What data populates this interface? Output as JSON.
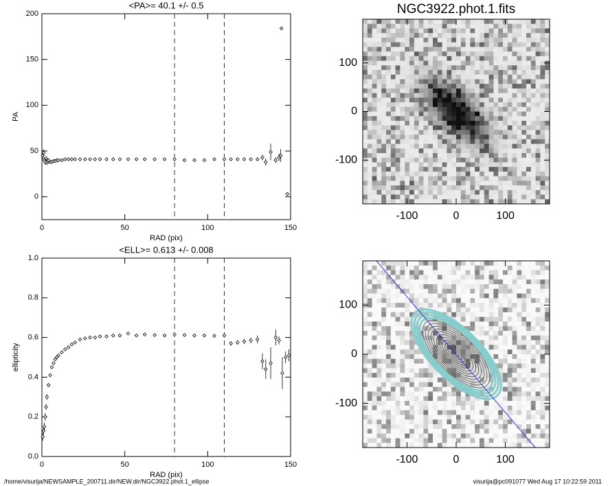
{
  "chart_data": [
    {
      "type": "scatter",
      "title": "<PA>=  40.1 +/-   0.5",
      "x_label": "RAD (pix)",
      "y_label": "PA",
      "x": [
        0.5,
        1,
        1.5,
        2,
        2.5,
        3,
        3.5,
        4,
        5,
        6,
        7,
        8,
        9,
        10,
        12,
        14,
        16,
        18,
        20,
        23,
        26,
        29,
        32,
        35,
        39,
        43,
        47,
        52,
        57,
        62,
        68,
        74,
        80,
        86,
        92,
        98,
        104,
        110,
        114,
        118,
        122,
        126,
        130,
        133,
        135,
        138,
        141,
        143,
        144,
        144.5,
        148
      ],
      "values": [
        45,
        48,
        40,
        38,
        42,
        37,
        39,
        40,
        38,
        38,
        39,
        39,
        40,
        40,
        40,
        41,
        41,
        41,
        41,
        41,
        41,
        41,
        41,
        41,
        41,
        41,
        41,
        41,
        41,
        41,
        41,
        41,
        41,
        40,
        40,
        40,
        41,
        41,
        41,
        41,
        41,
        41,
        41,
        43,
        38,
        49,
        40,
        43,
        45,
        184,
        3
      ],
      "errors": [
        4,
        4,
        3,
        3,
        2,
        2,
        2,
        1.5,
        1,
        1,
        1,
        0.8,
        0.8,
        0.6,
        0.6,
        0.5,
        0.5,
        0.5,
        0.5,
        0.5,
        0.5,
        0.5,
        0.5,
        0.5,
        0.5,
        0.5,
        0.5,
        0.5,
        0.5,
        0.5,
        0.5,
        0.5,
        0.5,
        0.6,
        0.6,
        0.6,
        0.7,
        0.8,
        0.9,
        1,
        1,
        1.5,
        2,
        3,
        4,
        9,
        3,
        4,
        7,
        1,
        1
      ],
      "vlines": [
        80,
        110
      ],
      "xlim": [
        0,
        150
      ],
      "ylim": [
        -25,
        200
      ],
      "xticks": [
        0,
        50,
        100,
        150
      ],
      "yticks": [
        0,
        50,
        100,
        150,
        200
      ]
    },
    {
      "type": "scatter",
      "title": "<ELL>= 0.613 +/-  0.008",
      "x_label": "RAD (pix)",
      "y_label": "ellipticity",
      "x": [
        0.5,
        1,
        1.5,
        2,
        2.5,
        3,
        4,
        5,
        6,
        7,
        8,
        9,
        10,
        12,
        14,
        16,
        18,
        20,
        23,
        26,
        29,
        32,
        35,
        39,
        43,
        47,
        52,
        57,
        62,
        68,
        74,
        80,
        86,
        92,
        98,
        104,
        110,
        114,
        118,
        122,
        126,
        130,
        133,
        135,
        138,
        141,
        143,
        145,
        147,
        149
      ],
      "values": [
        0.1,
        0.13,
        0.15,
        0.2,
        0.25,
        0.3,
        0.36,
        0.41,
        0.45,
        0.47,
        0.49,
        0.5,
        0.51,
        0.525,
        0.54,
        0.55,
        0.565,
        0.575,
        0.59,
        0.595,
        0.6,
        0.6,
        0.605,
        0.605,
        0.61,
        0.61,
        0.62,
        0.61,
        0.615,
        0.612,
        0.61,
        0.615,
        0.612,
        0.61,
        0.61,
        0.608,
        0.61,
        0.57,
        0.575,
        0.58,
        0.585,
        0.59,
        0.48,
        0.44,
        0.47,
        0.6,
        0.585,
        0.42,
        0.5,
        0.51
      ],
      "errors": [
        0.02,
        0.02,
        0.02,
        0.02,
        0.015,
        0.015,
        0.01,
        0.01,
        0.008,
        0.006,
        0.005,
        0.005,
        0.005,
        0.004,
        0.004,
        0.004,
        0.004,
        0.004,
        0.004,
        0.004,
        0.004,
        0.004,
        0.004,
        0.004,
        0.004,
        0.004,
        0.005,
        0.005,
        0.005,
        0.005,
        0.005,
        0.006,
        0.006,
        0.007,
        0.008,
        0.009,
        0.01,
        0.012,
        0.012,
        0.013,
        0.015,
        0.02,
        0.04,
        0.05,
        0.08,
        0.04,
        0.02,
        0.08,
        0.03,
        0.03
      ],
      "vlines": [
        80,
        110
      ],
      "xlim": [
        0,
        150
      ],
      "ylim": [
        0,
        1
      ],
      "xticks": [
        0,
        50,
        100,
        150
      ],
      "yticks": [
        {
          "value": 0,
          "label": "0.0"
        },
        {
          "value": 0.2,
          "label": "0.2"
        },
        {
          "value": 0.4,
          "label": "0.4"
        },
        {
          "value": 0.6,
          "label": "0.6"
        },
        {
          "value": 0.8,
          "label": "0.8"
        },
        {
          "value": 1,
          "label": "1.0"
        }
      ]
    },
    {
      "type": "image",
      "title": "NGC3922.phot.1.fits",
      "xlim": [
        -190,
        190
      ],
      "ylim": [
        -190,
        190
      ],
      "xticks": [
        -100,
        0,
        100
      ],
      "yticks": [
        -100,
        0,
        100
      ]
    },
    {
      "type": "image",
      "xlim": [
        -190,
        190
      ],
      "ylim": [
        -190,
        190
      ],
      "xticks": [
        -100,
        0,
        100
      ],
      "yticks": [
        -100,
        0,
        100
      ],
      "contours": true
    }
  ],
  "footer": {
    "path": "/home/visurija/NEWSAMPLE_200711.dir/NEW.dir/NGC3922.phot.1_ellipse",
    "stamp": "visurija@pc091077  Wed Aug 17 10:22:59 2011"
  }
}
